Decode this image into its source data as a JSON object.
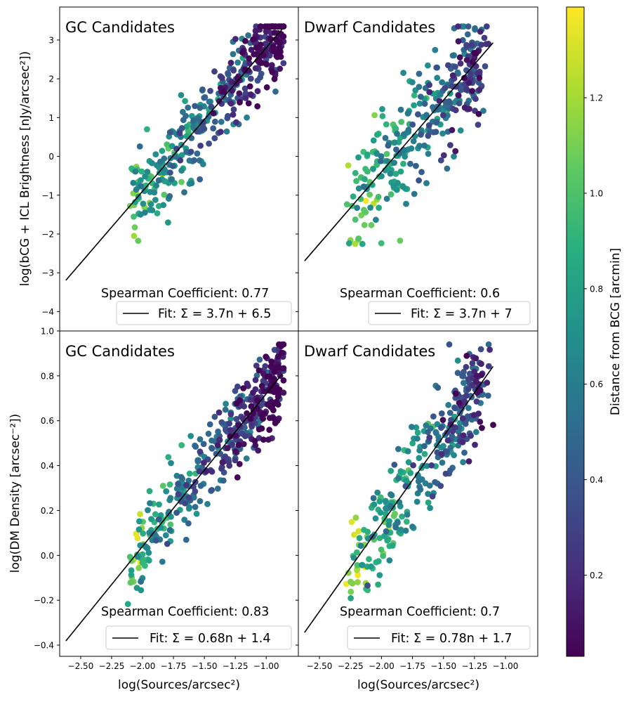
{
  "chart_data": [
    {
      "type": "scatter",
      "panel": "top-left",
      "title": "GC Candidates",
      "ylabel": "log(bCG + ICL Brightness [nJy/arcsec²])",
      "xlabel": "",
      "xlim": [
        -2.67,
        -0.74
      ],
      "ylim": [
        -4.5,
        3.85
      ],
      "yticks": [
        -4,
        -3,
        -2,
        -1,
        0,
        1,
        2,
        3
      ],
      "xticks": [],
      "annotation": "Spearman Coefficient: 0.77",
      "legend": "Fit: Σ = 3.7n + 6.5",
      "fit": {
        "slope": 3.7,
        "intercept": 6.5,
        "x_range": [
          -2.62,
          -0.87
        ]
      }
    },
    {
      "type": "scatter",
      "panel": "top-right",
      "title": "Dwarf Candidates",
      "xlim": [
        -2.67,
        -0.74
      ],
      "ylim": [
        -4.5,
        3.85
      ],
      "annotation": "Spearman Coefficient: 0.6",
      "legend": "Fit: Σ = 3.7n + 7",
      "fit": {
        "slope": 3.7,
        "intercept": 7,
        "x_range": [
          -2.62,
          -1.1
        ]
      }
    },
    {
      "type": "scatter",
      "panel": "bottom-left",
      "title": "GC Candidates",
      "ylabel": "log(DM Density [arcsec⁻²])",
      "xlabel": "log(Sources/arcsec²)",
      "xlim": [
        -2.67,
        -0.74
      ],
      "ylim": [
        -0.45,
        1.0
      ],
      "yticks": [
        "−0.4",
        "−0.2",
        "0.0",
        "0.2",
        "0.4",
        "0.6",
        "0.8",
        "1.0"
      ],
      "xticks": [
        "−2.50",
        "−2.25",
        "−2.00",
        "−1.75",
        "−1.50",
        "−1.25",
        "−1.00"
      ],
      "annotation": "Spearman Coefficient: 0.83",
      "legend": "Fit: Σ = 0.68n + 1.4",
      "fit": {
        "slope": 0.68,
        "intercept": 1.4,
        "x_range": [
          -2.62,
          -0.87
        ]
      }
    },
    {
      "type": "scatter",
      "panel": "bottom-right",
      "title": "Dwarf Candidates",
      "xlabel": "log(Sources/arcsec²)",
      "xlim": [
        -2.67,
        -0.74
      ],
      "ylim": [
        -0.45,
        1.0
      ],
      "xticks": [
        "−2.50",
        "−2.25",
        "−2.00",
        "−1.75",
        "−1.50",
        "−1.25",
        "−1.00"
      ],
      "annotation": "Spearman Coefficient: 0.7",
      "legend": "Fit: Σ = 0.78n + 1.7",
      "fit": {
        "slope": 0.78,
        "intercept": 1.7,
        "x_range": [
          -2.62,
          -1.1
        ]
      }
    }
  ],
  "colorbar": {
    "label": "Distance from BCG [arcmin]",
    "range": [
      0.03,
      1.39
    ],
    "ticks": [
      "0.2",
      "0.4",
      "0.6",
      "0.8",
      "1.0",
      "1.2"
    ],
    "colormap": "viridis"
  },
  "texts": {
    "p1_title": "GC Candidates",
    "p2_title": "Dwarf Candidates",
    "p3_title": "GC Candidates",
    "p4_title": "Dwarf Candidates",
    "p1_spear": "Spearman Coefficient: 0.77",
    "p2_spear": "Spearman Coefficient: 0.6",
    "p3_spear": "Spearman Coefficient: 0.83",
    "p4_spear": "Spearman Coefficient: 0.7",
    "p1_legend": "Fit: Σ = 3.7n + 6.5",
    "p2_legend": "Fit: Σ = 3.7n + 7",
    "p3_legend": "Fit: Σ = 0.68n + 1.4",
    "p4_legend": "Fit: Σ = 0.78n + 1.7",
    "ylabel_top": "log(bCG + ICL Brightness [nJy/arcsec²])",
    "ylabel_bottom": "log(DM Density [arcsec⁻²])",
    "xlabel": "log(Sources/arcsec²)",
    "colorbar_label": "Distance from BCG [arcmin]"
  },
  "ticks": {
    "y_top": [
      "−4",
      "−3",
      "−2",
      "−1",
      "0",
      "1",
      "2",
      "3"
    ],
    "y_bottom": [
      "−0.4",
      "−0.2",
      "0.0",
      "0.2",
      "0.4",
      "0.6",
      "0.8",
      "1.0"
    ],
    "x": [
      "−2.50",
      "−2.25",
      "−2.00",
      "−1.75",
      "−1.50",
      "−1.25",
      "−1.00"
    ],
    "cbar": [
      "0.2",
      "0.4",
      "0.6",
      "0.8",
      "1.0",
      "1.2"
    ]
  }
}
